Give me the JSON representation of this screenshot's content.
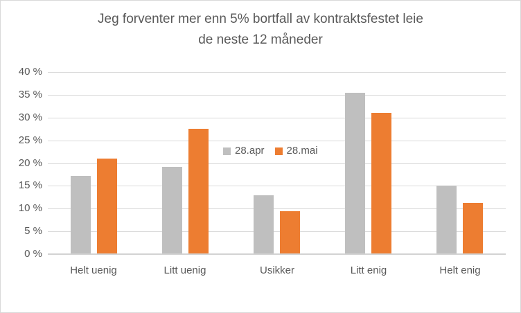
{
  "chart_data": {
    "type": "bar",
    "title": "Jeg forventer mer enn 5% bortfall av kontraktsfestet leie de neste 12 måneder",
    "title_lines": [
      "Jeg forventer mer enn 5% bortfall av kontraktsfestet leie",
      "de neste 12 måneder"
    ],
    "categories": [
      "Helt uenig",
      "Litt uenig",
      "Usikker",
      "Litt enig",
      "Helt enig"
    ],
    "series": [
      {
        "name": "28.apr",
        "color": "#BFBFBF",
        "values": [
          17.2,
          19.2,
          13.0,
          35.5,
          15.0
        ]
      },
      {
        "name": "28.mai",
        "color": "#ED7D31",
        "values": [
          21.0,
          27.5,
          9.5,
          31.0,
          11.3
        ]
      }
    ],
    "ylim": [
      0,
      40
    ],
    "ytick_step": 5,
    "ytick_suffix": " %",
    "ytick_labels": [
      "0 %",
      "5 %",
      "10 %",
      "15 %",
      "20 %",
      "25 %",
      "30 %",
      "35 %",
      "40 %"
    ],
    "grid": true,
    "legend_position": "inside-top-center"
  },
  "colors": {
    "background": "#FFFFFF",
    "border": "#D9D9D9",
    "gridline": "#D9D9D9",
    "axis_line": "#D2D2D2",
    "text": "#595959",
    "series_28apr": "#BFBFBF",
    "series_28mai": "#ED7D31"
  }
}
